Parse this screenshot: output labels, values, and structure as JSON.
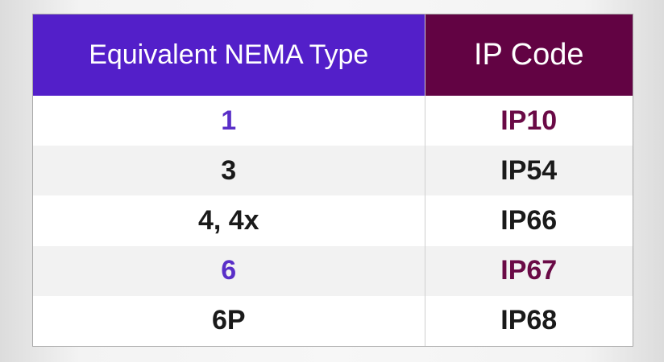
{
  "table": {
    "headers": [
      "Equivalent NEMA Type",
      "IP Code"
    ],
    "rows": [
      {
        "nema": "1",
        "ip": "IP10",
        "highlight": true
      },
      {
        "nema": "3",
        "ip": "IP54",
        "highlight": false
      },
      {
        "nema": "4, 4x",
        "ip": "IP66",
        "highlight": false
      },
      {
        "nema": "6",
        "ip": "IP67",
        "highlight": true
      },
      {
        "nema": "6P",
        "ip": "IP68",
        "highlight": false
      }
    ]
  },
  "colors": {
    "header_left_bg": "#531fc9",
    "header_right_bg": "#620343",
    "highlight_left_text": "#5a2fc8",
    "highlight_right_text": "#6a0a46",
    "default_text": "#1a1a1a"
  }
}
